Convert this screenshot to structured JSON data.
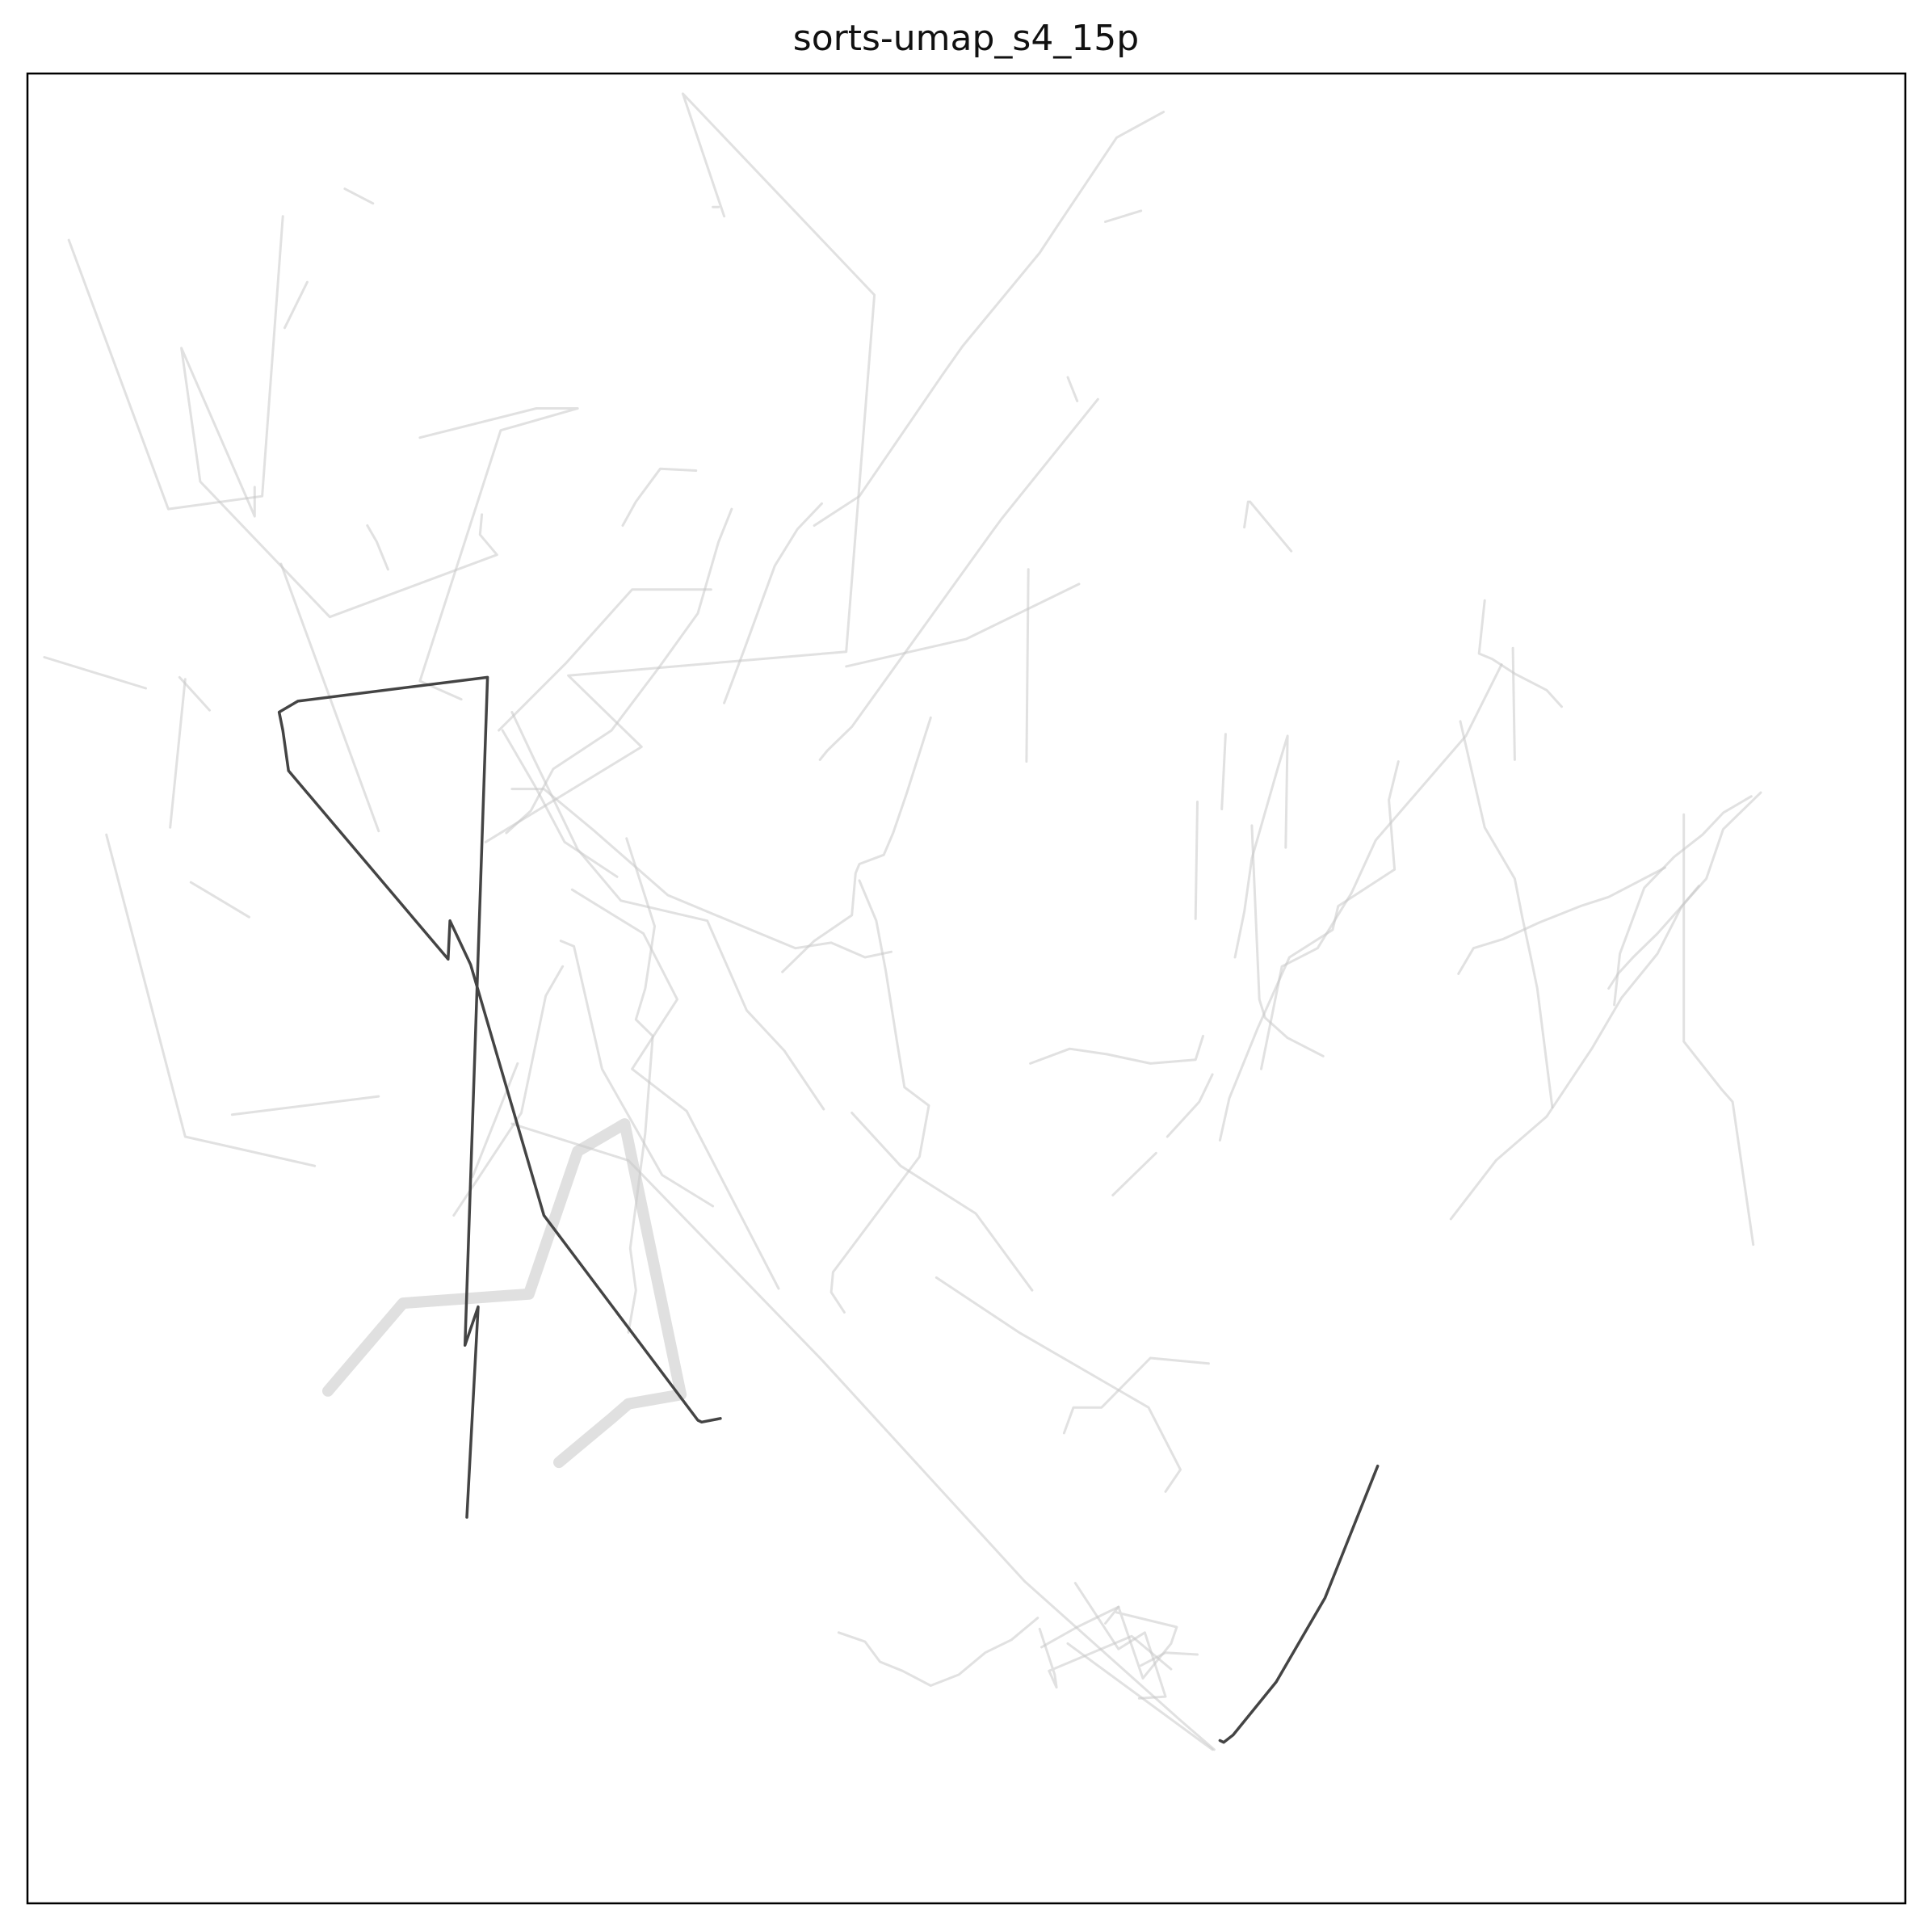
{
  "chart_data": {
    "type": "line",
    "title": "sorts-umap_s4_15p",
    "xlabel": "",
    "ylabel": "",
    "xlim": [
      0,
      100
    ],
    "ylim": [
      0,
      100
    ],
    "ticks_visible": false,
    "grid": false,
    "legend": "none",
    "colors": {
      "background_trajectory": "#c8c8c8",
      "highlighted_trajectory": "#444444",
      "fan_fill": "#e0e0e0",
      "frame": "#000000"
    },
    "highlighted_series": [
      {
        "x": [
          36.9,
          35.9,
          35.7,
          27.5,
          23.6,
          22.5,
          22.4,
          13.9,
          13.6,
          13.4,
          14.4,
          24.5,
          23.3,
          24.0,
          23.4
        ],
        "y": [
          26.5,
          26.3,
          26.4,
          37.6,
          51.3,
          53.7,
          51.6,
          61.9,
          64.1,
          65.1,
          65.7,
          67.0,
          30.5,
          32.6,
          21.1
        ]
      },
      {
        "x": [
          63.5,
          63.7,
          64.2,
          66.5,
          69.1,
          71.9
        ],
        "y": [
          8.9,
          8.8,
          9.2,
          12.1,
          16.7,
          23.9
        ]
      }
    ],
    "background_series": [
      {
        "x": [
          36.8,
          36.5
        ],
        "y": [
          92.7,
          92.7
        ]
      },
      {
        "x": [
          37.1,
          34.9,
          45.1,
          43.6,
          28.8,
          32.7,
          24.4
        ],
        "y": [
          92.2,
          98.9,
          87.9,
          68.4,
          67.1,
          63.2,
          58.0
        ]
      },
      {
        "x": [
          23.1,
          20.9,
          25.2,
          29.3,
          27.1,
          20.9
        ],
        "y": [
          65.8,
          66.8,
          80.5,
          81.7,
          81.7,
          80.1
        ]
      },
      {
        "x": [
          25.5,
          26.8,
          28.0,
          31.1,
          33.6,
          35.7,
          36.8,
          37.5
        ],
        "y": [
          58.5,
          59.7,
          62.0,
          64.1,
          67.5,
          70.5,
          74.4,
          76.2
        ]
      },
      {
        "x": [
          25.8,
          27.5,
          30.2,
          34.1,
          39.0,
          40.9,
          42.8,
          44.6,
          46.0
        ],
        "y": [
          60.9,
          60.9,
          58.6,
          55.1,
          53.0,
          52.2,
          52.5,
          51.7,
          52.0
        ]
      },
      {
        "x": [
          42.4,
          40.3,
          38.3,
          36.2,
          31.6,
          29.3,
          26.9,
          25.8
        ],
        "y": [
          43.4,
          46.6,
          48.8,
          53.7,
          54.8,
          57.6,
          62.7,
          65.1
        ]
      },
      {
        "x": [
          8.4,
          7.6
        ],
        "y": [
          66.9,
          58.8
        ]
      },
      {
        "x": [
          9.7,
          8.1
        ],
        "y": [
          65.2,
          67.0
        ]
      },
      {
        "x": [
          13.6,
          12.5,
          7.5,
          2.2
        ],
        "y": [
          92.2,
          76.9,
          76.2,
          90.9
        ]
      },
      {
        "x": [
          18.7,
          13.5
        ],
        "y": [
          58.6,
          73.2
        ]
      },
      {
        "x": [
          13.7,
          14.9
        ],
        "y": [
          86.1,
          88.6
        ]
      },
      {
        "x": [
          16.9,
          18.4
        ],
        "y": [
          93.7,
          92.9
        ]
      },
      {
        "x": [
          24.2,
          24.1,
          25.0,
          16.1,
          9.2,
          8.2,
          12.1,
          12.1
        ],
        "y": [
          75.9,
          74.8,
          73.7,
          70.3,
          77.7,
          85.0,
          75.8,
          77.4
        ]
      },
      {
        "x": [
          31.4,
          28.6,
          27.0,
          25.3
        ],
        "y": [
          56.1,
          58.0,
          61.1,
          64.1
        ]
      },
      {
        "x": [
          25.1,
          28.7,
          32.2,
          36.4
        ],
        "y": [
          64.1,
          67.8,
          71.8,
          71.8
        ]
      },
      {
        "x": [
          41.9,
          44.3,
          48.7,
          49.8,
          53.9,
          54.8,
          58.0,
          60.5
        ],
        "y": [
          75.3,
          76.9,
          83.5,
          85.1,
          90.2,
          91.6,
          96.5,
          97.9
        ]
      },
      {
        "x": [
          42.2,
          42.6,
          43.9,
          48.1,
          51.4,
          51.9,
          57.0
        ],
        "y": [
          62.5,
          63.0,
          64.3,
          70.3,
          75.0,
          75.7,
          82.2
        ]
      },
      {
        "x": [
          55.9,
          55.4
        ],
        "y": [
          82.1,
          83.4
        ]
      },
      {
        "x": [
          64.8,
          65.0
        ],
        "y": [
          75.2,
          76.6
        ]
      },
      {
        "x": [
          65.1,
          67.3
        ],
        "y": [
          76.6,
          73.9
        ]
      },
      {
        "x": [
          60.7,
          62.4,
          63.1
        ],
        "y": [
          41.9,
          43.8,
          45.3
        ]
      },
      {
        "x": [
          57.4,
          59.3
        ],
        "y": [
          91.9,
          92.5
        ]
      },
      {
        "x": [
          62.3,
          62.2
        ],
        "y": [
          60.2,
          53.8
        ]
      },
      {
        "x": [
          77.6,
          77.3,
          78.0,
          79.2,
          80.9,
          81.7
        ],
        "y": [
          71.2,
          68.3,
          68.0,
          67.2,
          66.3,
          65.4
        ]
      },
      {
        "x": [
          79.2,
          79.1
        ],
        "y": [
          62.5,
          68.6
        ]
      },
      {
        "x": [
          91.8,
          90.3,
          89.2,
          87.7,
          86.1,
          84.8,
          84.5
        ],
        "y": [
          60.5,
          59.6,
          58.4,
          57.2,
          55.5,
          51.9,
          49.1
        ]
      },
      {
        "x": [
          75.8,
          78.2,
          80.9,
          83.3,
          84.9,
          86.8,
          88.1,
          89.0
        ],
        "y": [
          37.4,
          40.6,
          43.0,
          46.7,
          49.5,
          51.9,
          54.5,
          55.6
        ]
      },
      {
        "x": [
          92.3,
          90.3,
          89.4,
          86.8,
          85.5,
          84.7,
          84.2
        ],
        "y": [
          60.7,
          58.7,
          56.0,
          53.0,
          51.7,
          50.8,
          50.0
        ]
      },
      {
        "x": [
          76.2,
          77.0,
          78.6,
          80.5,
          82.7,
          84.2,
          87.2
        ],
        "y": [
          50.8,
          52.2,
          52.7,
          53.6,
          54.5,
          55.0,
          56.6
        ]
      },
      {
        "x": [
          81.2,
          80.4,
          80.1,
          79.6,
          79.2,
          77.6,
          76.3
        ],
        "y": [
          43.5,
          50.0,
          51.5,
          53.9,
          56.0,
          58.8,
          64.6
        ]
      },
      {
        "x": [
          78.5,
          76.6,
          71.8,
          70.5,
          68.7,
          66.8,
          65.7
        ],
        "y": [
          67.7,
          63.8,
          58.1,
          55.2,
          52.2,
          51.2,
          45.6
        ]
      },
      {
        "x": [
          63.8,
          63.6
        ],
        "y": [
          63.9,
          59.8
        ]
      },
      {
        "x": [
          69.0,
          67.1,
          65.9,
          65.6,
          65.2
        ],
        "y": [
          46.3,
          47.3,
          48.4,
          49.4,
          58.9
        ]
      },
      {
        "x": [
          73.0,
          72.5,
          72.8,
          69.8,
          69.5,
          67.2,
          65.5,
          64.0,
          63.5
        ],
        "y": [
          62.4,
          60.3,
          56.5,
          54.5,
          53.2,
          51.7,
          47.8,
          44.0,
          41.7
        ]
      },
      {
        "x": [
          64.3,
          64.8,
          65.2,
          66.6,
          67.1,
          67.0
        ],
        "y": [
          51.7,
          54.2,
          57.1,
          62.1,
          63.8,
          57.7
        ]
      },
      {
        "x": [
          53.8,
          52.4,
          51.0,
          49.6,
          48.1,
          46.6,
          45.4,
          44.6,
          43.2
        ],
        "y": [
          15.6,
          14.4,
          13.7,
          12.5,
          11.9,
          12.7,
          13.2,
          14.3,
          14.8
        ]
      },
      {
        "x": [
          59.3,
          60.6,
          62.3
        ],
        "y": [
          13.0,
          13.7,
          13.6
        ]
      },
      {
        "x": [
          53.9,
          54.7,
          54.8,
          54.4,
          58.8,
          60.9
        ],
        "y": [
          15.0,
          12.5,
          11.8,
          12.7,
          14.6,
          12.8
        ]
      },
      {
        "x": [
          55.8,
          58.1,
          59.5,
          60.6,
          59.2
        ],
        "y": [
          17.5,
          13.9,
          14.8,
          11.3,
          11.2
        ]
      },
      {
        "x": [
          57.4,
          58.1,
          59.4,
          60.9,
          61.2,
          58.0
        ],
        "y": [
          15.3,
          16.2,
          12.3,
          14.2,
          15.1,
          15.9
        ]
      },
      {
        "x": [
          54.0,
          55.9,
          57.1,
          58.1
        ],
        "y": [
          14.0,
          15.1,
          15.7,
          16.2
        ]
      },
      {
        "x": [
          40.2,
          41.9,
          43.9,
          44.1,
          44.3,
          45.6,
          46.1,
          46.8,
          48.1
        ],
        "y": [
          50.9,
          52.6,
          54.0,
          56.3,
          56.8,
          57.3,
          58.5,
          60.6,
          64.8
        ]
      },
      {
        "x": [
          53.4,
          55.5,
          57.5,
          59.8,
          62.2,
          62.6
        ],
        "y": [
          45.9,
          46.7,
          46.4,
          45.9,
          46.1,
          47.4
        ]
      },
      {
        "x": [
          18.1,
          18.6,
          19.2
        ],
        "y": [
          75.3,
          74.4,
          72.9
        ]
      },
      {
        "x": [
          6.3,
          0.9
        ],
        "y": [
          66.4,
          68.1
        ]
      },
      {
        "x": [
          4.2,
          8.4,
          15.3
        ],
        "y": [
          58.4,
          41.9,
          40.3
        ]
      },
      {
        "x": [
          11.8,
          8.7
        ],
        "y": [
          53.9,
          55.8
        ]
      },
      {
        "x": [
          18.7,
          10.9
        ],
        "y": [
          44.1,
          43.1
        ]
      },
      {
        "x": [
          26.1,
          23.7
        ],
        "y": [
          45.9,
          39.7
        ]
      },
      {
        "x": [
          28.4,
          29.1,
          30.6,
          33.8,
          36.5
        ],
        "y": [
          52.6,
          52.3,
          45.6,
          39.8,
          38.1
        ]
      },
      {
        "x": [
          22.7,
          26.3,
          27.6,
          28.5
        ],
        "y": [
          37.6,
          43.2,
          49.6,
          51.2
        ]
      },
      {
        "x": [
          32.0,
          32.4,
          32.1,
          32.9,
          33.3,
          32.4,
          32.9,
          33.4,
          31.9
        ],
        "y": [
          31.2,
          33.5,
          35.8,
          42.1,
          47.4,
          48.3,
          50.0,
          53.4,
          58.2
        ]
      },
      {
        "x": [
          43.5,
          42.8,
          42.9,
          47.5,
          48.0,
          46.7,
          46.3,
          45.7,
          45.2,
          44.3
        ],
        "y": [
          32.3,
          33.4,
          34.5,
          40.8,
          43.6,
          44.6,
          47.1,
          51.0,
          53.7,
          55.9
        ]
      },
      {
        "x": [
          55.2,
          55.7,
          57.2,
          59.8,
          62.9
        ],
        "y": [
          25.7,
          27.1,
          27.1,
          29.8,
          29.5
        ]
      },
      {
        "x": [
          53.5,
          50.5,
          46.5,
          43.9
        ],
        "y": [
          33.5,
          37.7,
          40.3,
          43.2
        ]
      },
      {
        "x": [
          40.0,
          35.1,
          32.2,
          34.6,
          32.8,
          29.0
        ],
        "y": [
          33.6,
          43.3,
          45.6,
          49.4,
          53.0,
          55.4
        ]
      },
      {
        "x": [
          25.8,
          32.0,
          42.3,
          53.1,
          61.4,
          63.2
        ],
        "y": [
          42.6,
          40.6,
          29.7,
          17.6,
          10.0,
          8.4
        ]
      },
      {
        "x": [
          48.4,
          52.8,
          59.7,
          61.4,
          60.6
        ],
        "y": [
          34.2,
          31.2,
          27.1,
          23.7,
          22.5
        ]
      },
      {
        "x": [
          63.1,
          55.4
        ],
        "y": [
          8.4,
          14.2
        ]
      },
      {
        "x": [
          88.2,
          88.2,
          90.2,
          90.8,
          91.9
        ],
        "y": [
          59.5,
          47.1,
          44.5,
          43.8,
          36.0
        ]
      },
      {
        "x": [
          57.8,
          60.1
        ],
        "y": [
          38.7,
          41.0
        ]
      },
      {
        "x": [
          53.2,
          53.3
        ],
        "y": [
          62.4,
          72.9
        ]
      },
      {
        "x": [
          43.6,
          50.0,
          56.0
        ],
        "y": [
          67.6,
          69.1,
          72.1
        ]
      },
      {
        "x": [
          35.6,
          33.7,
          32.4,
          31.7
        ],
        "y": [
          78.3,
          78.4,
          76.6,
          75.3
        ]
      },
      {
        "x": [
          42.3,
          41.0,
          39.8,
          38.2,
          37.1
        ],
        "y": [
          76.5,
          75.1,
          73.1,
          68.6,
          65.6
        ]
      }
    ],
    "fan_clusters": [
      {
        "x": [
          16.0,
          20.0,
          26.7,
          29.3,
          31.8,
          34.8,
          32.0,
          31.1,
          28.3
        ],
        "y": [
          28.0,
          32.8,
          33.3,
          41.1,
          42.6,
          27.8,
          27.3,
          26.5,
          24.1
        ]
      }
    ]
  }
}
